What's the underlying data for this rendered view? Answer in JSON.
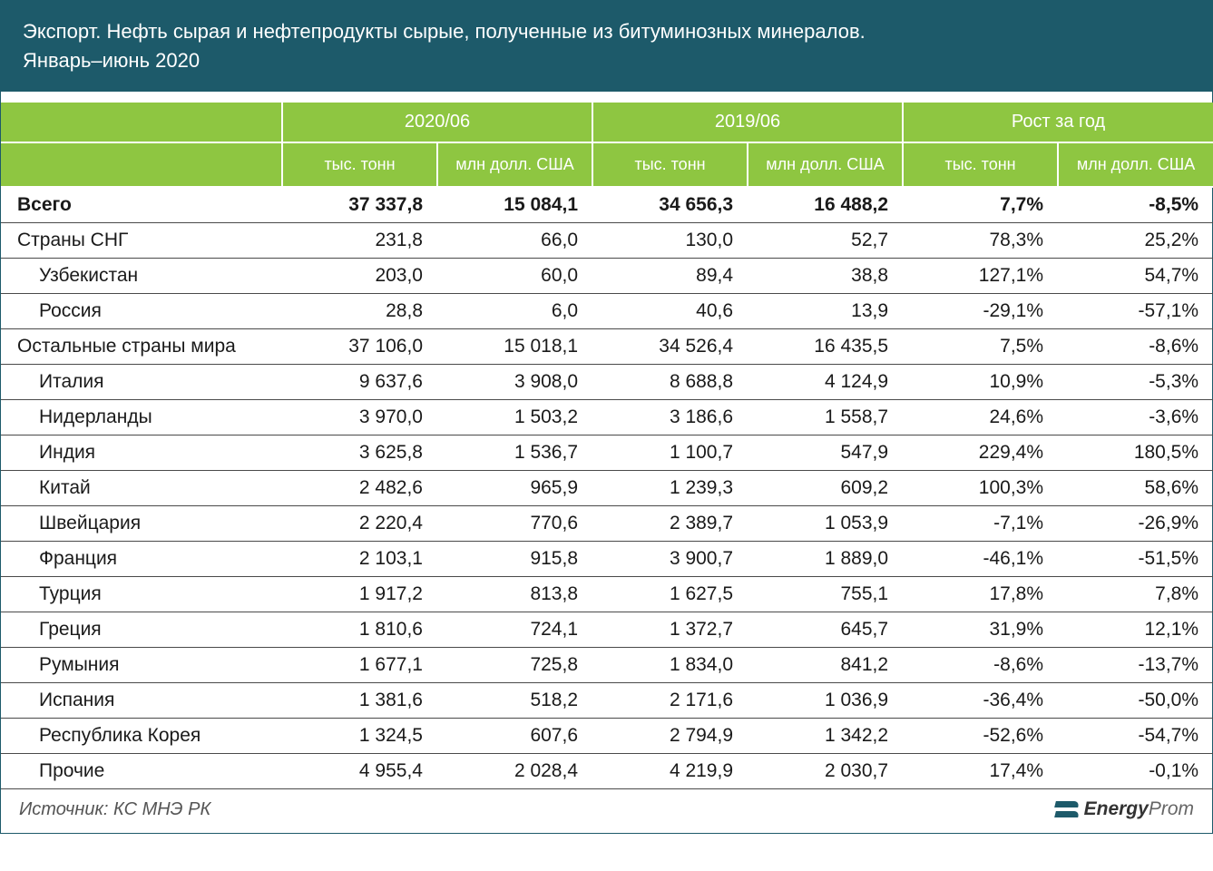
{
  "title": {
    "line1": "Экспорт. Нефть сырая и нефтепродукты сырые, полученные из битуминозных минералов.",
    "line2": "Январь–июнь 2020"
  },
  "table": {
    "type": "table",
    "header_bg": "#8ec641",
    "header_color": "#ffffff",
    "border_color": "#4a4a4a",
    "group_headers": [
      "2020/06",
      "2019/06",
      "Рост за год"
    ],
    "sub_headers": {
      "tons": "тыс. тонн",
      "usd": "млн долл. США"
    },
    "rows": [
      {
        "label": "Всего",
        "bold": true,
        "indent": 0,
        "v": [
          "37 337,8",
          "15 084,1",
          "34 656,3",
          "16 488,2",
          "7,7%",
          "-8,5%"
        ]
      },
      {
        "label": "Страны СНГ",
        "bold": false,
        "indent": 0,
        "v": [
          "231,8",
          "66,0",
          "130,0",
          "52,7",
          "78,3%",
          "25,2%"
        ]
      },
      {
        "label": "Узбекистан",
        "bold": false,
        "indent": 1,
        "v": [
          "203,0",
          "60,0",
          "89,4",
          "38,8",
          "127,1%",
          "54,7%"
        ]
      },
      {
        "label": "Россия",
        "bold": false,
        "indent": 1,
        "v": [
          "28,8",
          "6,0",
          "40,6",
          "13,9",
          "-29,1%",
          "-57,1%"
        ]
      },
      {
        "label": "Остальные страны мира",
        "bold": false,
        "indent": 0,
        "v": [
          "37 106,0",
          "15 018,1",
          "34 526,4",
          "16 435,5",
          "7,5%",
          "-8,6%"
        ]
      },
      {
        "label": "Италия",
        "bold": false,
        "indent": 1,
        "v": [
          "9 637,6",
          "3 908,0",
          "8 688,8",
          "4 124,9",
          "10,9%",
          "-5,3%"
        ]
      },
      {
        "label": "Нидерланды",
        "bold": false,
        "indent": 1,
        "v": [
          "3 970,0",
          "1 503,2",
          "3 186,6",
          "1 558,7",
          "24,6%",
          "-3,6%"
        ]
      },
      {
        "label": "Индия",
        "bold": false,
        "indent": 1,
        "v": [
          "3 625,8",
          "1 536,7",
          "1 100,7",
          "547,9",
          "229,4%",
          "180,5%"
        ]
      },
      {
        "label": "Китай",
        "bold": false,
        "indent": 1,
        "v": [
          "2 482,6",
          "965,9",
          "1 239,3",
          "609,2",
          "100,3%",
          "58,6%"
        ]
      },
      {
        "label": "Швейцария",
        "bold": false,
        "indent": 1,
        "v": [
          "2 220,4",
          "770,6",
          "2 389,7",
          "1 053,9",
          "-7,1%",
          "-26,9%"
        ]
      },
      {
        "label": "Франция",
        "bold": false,
        "indent": 1,
        "v": [
          "2 103,1",
          "915,8",
          "3 900,7",
          "1 889,0",
          "-46,1%",
          "-51,5%"
        ]
      },
      {
        "label": "Турция",
        "bold": false,
        "indent": 1,
        "v": [
          "1 917,2",
          "813,8",
          "1 627,5",
          "755,1",
          "17,8%",
          "7,8%"
        ]
      },
      {
        "label": "Греция",
        "bold": false,
        "indent": 1,
        "v": [
          "1 810,6",
          "724,1",
          "1 372,7",
          "645,7",
          "31,9%",
          "12,1%"
        ]
      },
      {
        "label": "Румыния",
        "bold": false,
        "indent": 1,
        "v": [
          "1 677,1",
          "725,8",
          "1 834,0",
          "841,2",
          "-8,6%",
          "-13,7%"
        ]
      },
      {
        "label": "Испания",
        "bold": false,
        "indent": 1,
        "v": [
          "1 381,6",
          "518,2",
          "2 171,6",
          "1 036,9",
          "-36,4%",
          "-50,0%"
        ]
      },
      {
        "label": "Республика Корея",
        "bold": false,
        "indent": 1,
        "v": [
          "1 324,5",
          "607,6",
          "2 794,9",
          "1 342,2",
          "-52,6%",
          "-54,7%"
        ]
      },
      {
        "label": "Прочие",
        "bold": false,
        "indent": 1,
        "v": [
          "4 955,4",
          "2 028,4",
          "4 219,9",
          "2 030,7",
          "17,4%",
          "-0,1%"
        ]
      }
    ]
  },
  "footer": {
    "source": "Источник: КС МНЭ РК",
    "brand_strong": "Energy",
    "brand_light": "Prom"
  },
  "colors": {
    "title_bg": "#1d5a6a",
    "title_fg": "#ffffff",
    "body_bg": "#ffffff",
    "text": "#1a1a1a",
    "source": "#555555"
  }
}
